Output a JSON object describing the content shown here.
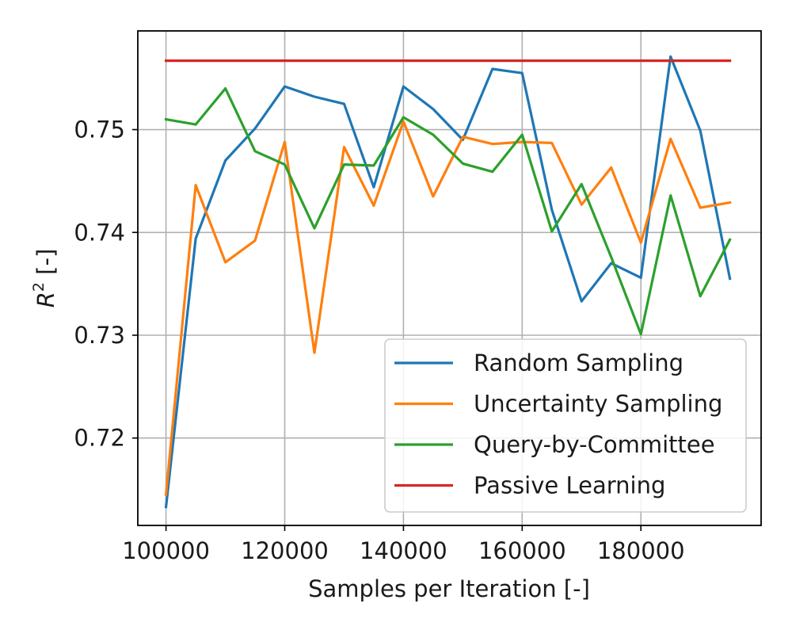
{
  "chart_data": {
    "type": "line",
    "title": "",
    "xlabel": "Samples per Iteration [-]",
    "ylabel_main": "R",
    "ylabel_sup": "2",
    "ylabel_rest": " [-]",
    "xlim": [
      95250,
      200250
    ],
    "ylim": [
      0.7115,
      0.7596
    ],
    "xticks": [
      100000,
      120000,
      140000,
      160000,
      180000
    ],
    "xtick_labels": [
      "100000",
      "120000",
      "140000",
      "160000",
      "180000"
    ],
    "yticks": [
      0.72,
      0.73,
      0.74,
      0.75
    ],
    "ytick_labels": [
      "0.72",
      "0.73",
      "0.74",
      "0.75"
    ],
    "grid": true,
    "legend_position": "bottom-right",
    "x": [
      100000,
      105000,
      110000,
      115000,
      120000,
      125000,
      130000,
      135000,
      140000,
      145000,
      150000,
      155000,
      160000,
      165000,
      170000,
      175000,
      180000,
      185000,
      190000,
      195000
    ],
    "series": [
      {
        "name": "Random Sampling",
        "color": "#1f77b4",
        "values": [
          0.7133,
          0.7394,
          0.747,
          0.7501,
          0.7542,
          0.7532,
          0.7525,
          0.7444,
          0.7542,
          0.752,
          0.749,
          0.7559,
          0.7555,
          0.7422,
          0.7333,
          0.737,
          0.7356,
          0.7571,
          0.7499,
          0.7355
        ]
      },
      {
        "name": "Uncertainty Sampling",
        "color": "#ff7f0e",
        "values": [
          0.7145,
          0.7446,
          0.7371,
          0.7392,
          0.7488,
          0.7283,
          0.7483,
          0.7426,
          0.7508,
          0.7435,
          0.7493,
          0.7486,
          0.7488,
          0.7487,
          0.7427,
          0.7463,
          0.739,
          0.7491,
          0.7424,
          0.7429
        ]
      },
      {
        "name": "Query-by-Committee",
        "color": "#2ca02c",
        "values": [
          0.751,
          0.7505,
          0.754,
          0.7479,
          0.7466,
          0.7404,
          0.7466,
          0.7465,
          0.7512,
          0.7495,
          0.7467,
          0.7459,
          0.7495,
          0.7401,
          0.7447,
          0.7376,
          0.7301,
          0.7436,
          0.7338,
          0.7393
        ]
      },
      {
        "name": "Passive Learning",
        "color": "#d62728",
        "values": [
          0.7567,
          0.7567,
          0.7567,
          0.7567,
          0.7567,
          0.7567,
          0.7567,
          0.7567,
          0.7567,
          0.7567,
          0.7567,
          0.7567,
          0.7567,
          0.7567,
          0.7567,
          0.7567,
          0.7567,
          0.7567,
          0.7567,
          0.7567
        ]
      }
    ]
  }
}
